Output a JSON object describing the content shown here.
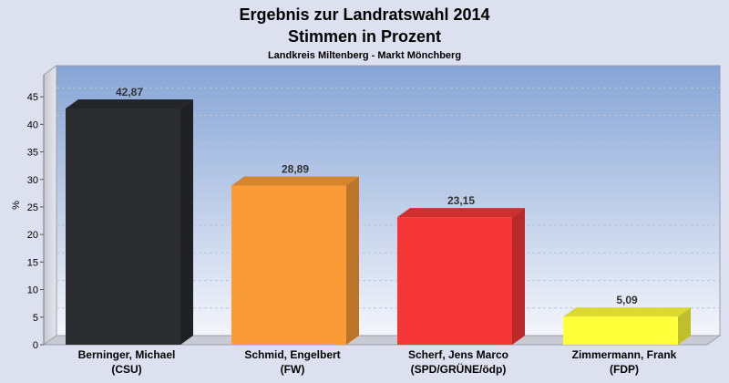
{
  "chart_data": {
    "type": "bar",
    "title": "Ergebnis zur Landratswahl 2014",
    "title2": "Stimmen in Prozent",
    "subtitle": "Landkreis Miltenberg - Markt Mönchberg",
    "ylabel": "%",
    "ylim": [
      0,
      48
    ],
    "yticks": [
      0,
      5,
      10,
      15,
      20,
      25,
      30,
      35,
      40,
      45
    ],
    "grid": true,
    "categories": [
      {
        "name": "Berninger, Michael",
        "party": "(CSU)"
      },
      {
        "name": "Schmid, Engelbert",
        "party": "(FW)"
      },
      {
        "name": "Scherf, Jens Marco",
        "party": "(SPD/GRÜNE/ödp)"
      },
      {
        "name": "Zimmermann, Frank",
        "party": "(FDP)"
      }
    ],
    "values": [
      42.87,
      28.89,
      23.15,
      5.09
    ],
    "value_labels": [
      "42,87",
      "28,89",
      "23,15",
      "5,09"
    ],
    "colors": [
      "#2a2c30",
      "#f99b36",
      "#f53636",
      "#ffff3a"
    ]
  }
}
